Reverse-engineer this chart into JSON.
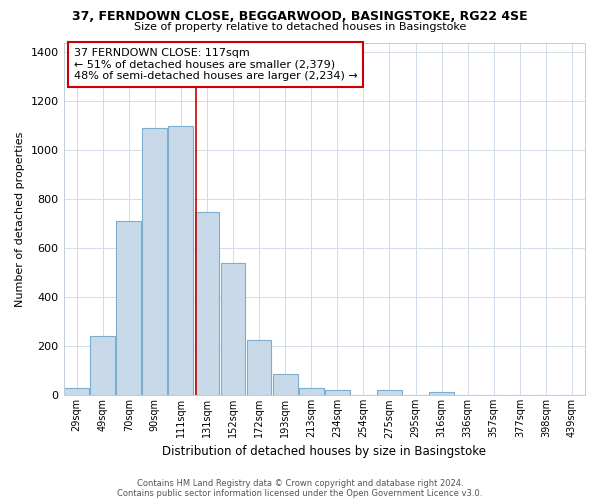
{
  "title1": "37, FERNDOWN CLOSE, BEGGARWOOD, BASINGSTOKE, RG22 4SE",
  "title2": "Size of property relative to detached houses in Basingstoke",
  "xlabel": "Distribution of detached houses by size in Basingstoke",
  "ylabel": "Number of detached properties",
  "bar_labels": [
    "29sqm",
    "49sqm",
    "70sqm",
    "90sqm",
    "111sqm",
    "131sqm",
    "152sqm",
    "172sqm",
    "193sqm",
    "213sqm",
    "234sqm",
    "254sqm",
    "275sqm",
    "295sqm",
    "316sqm",
    "336sqm",
    "357sqm",
    "377sqm",
    "398sqm",
    "439sqm"
  ],
  "bar_values": [
    30,
    240,
    710,
    1090,
    1100,
    750,
    540,
    225,
    85,
    30,
    20,
    0,
    20,
    0,
    15,
    0,
    0,
    0,
    0,
    0
  ],
  "bar_color": "#c8daea",
  "bar_edge_color": "#7daecf",
  "vline_x": 4.58,
  "vline_color": "#cc0000",
  "annotation_text": "37 FERNDOWN CLOSE: 117sqm\n← 51% of detached houses are smaller (2,379)\n48% of semi-detached houses are larger (2,234) →",
  "annotation_box_color": "#ffffff",
  "annotation_box_edge": "#cc0000",
  "ylim": [
    0,
    1440
  ],
  "yticks": [
    0,
    200,
    400,
    600,
    800,
    1000,
    1200,
    1400
  ],
  "footer1": "Contains HM Land Registry data © Crown copyright and database right 2024.",
  "footer2": "Contains public sector information licensed under the Open Government Licence v3.0.",
  "bg_color": "#ffffff",
  "grid_color": "#d0dce8"
}
